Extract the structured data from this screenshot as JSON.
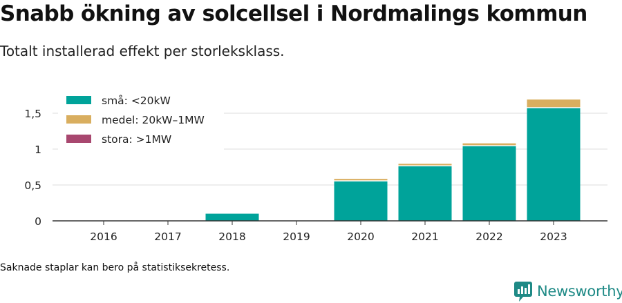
{
  "header": {
    "title": "Snabb ökning av solcellsel i Nordmalings kommun",
    "subtitle": "Totalt installerad effekt per storleksklass."
  },
  "footer": {
    "note": "Saknade staplar kan bero på statistiksekretess.",
    "brand": "Newsworthy",
    "brand_color": "#1f8a86"
  },
  "chart_data": {
    "type": "bar",
    "stacked": true,
    "categories": [
      "2016",
      "2017",
      "2018",
      "2019",
      "2020",
      "2021",
      "2022",
      "2023"
    ],
    "series": [
      {
        "name": "små: <20kW",
        "color": "#00a39a",
        "values": [
          0,
          0,
          0.1,
          0,
          0.55,
          0.76,
          1.04,
          1.57
        ]
      },
      {
        "name": "medel: 20kW–1MW",
        "color": "#d9ae5f",
        "values": [
          0,
          0,
          0,
          0,
          0.035,
          0.035,
          0.04,
          0.12
        ]
      },
      {
        "name": "stora: >1MW",
        "color": "#a8476f",
        "values": [
          0,
          0,
          0,
          0,
          0,
          0,
          0,
          0
        ]
      }
    ],
    "yticks": [
      0,
      0.5,
      1,
      1.5
    ],
    "ytick_labels": [
      "0",
      "0,5",
      "1",
      "1,5"
    ],
    "ylim": [
      0,
      1.7
    ],
    "grid": true,
    "legend_position": "top-left",
    "xlabel": "",
    "ylabel": ""
  }
}
